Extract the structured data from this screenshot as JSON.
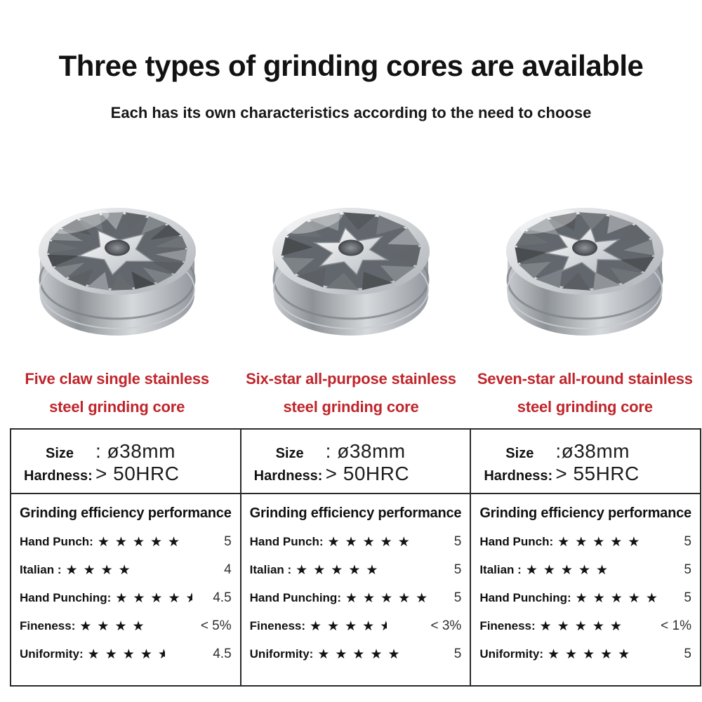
{
  "header": {
    "title": "Three types of grinding cores are available",
    "subtitle": "Each has its own characteristics according to the need to choose"
  },
  "colors": {
    "accent_red": "#bf252b",
    "text": "#161616",
    "table_border": "#2a2a2a",
    "star": "#141414",
    "metal_light": "#f4f5f6",
    "metal_dark": "#62676d"
  },
  "products": [
    {
      "image_icon": "five-claw-burr-photo",
      "star_points": 5,
      "name_line1": "Five claw single stainless",
      "name_line2": "steel grinding core",
      "specs": {
        "size_label": "Size",
        "size_value": ": ø38mm",
        "hardness_label": "Hardness:",
        "hardness_value": "> 50HRC"
      },
      "ratings_title": "Grinding efficiency performance",
      "ratings": [
        {
          "label": "Hand Punch:",
          "stars": 5,
          "value": "5"
        },
        {
          "label": "Italian :",
          "stars": 4,
          "value": "4"
        },
        {
          "label": "Hand Punching:",
          "stars": 4.5,
          "value": "4.5"
        },
        {
          "label": "Fineness:",
          "stars": 4,
          "value": "< 5%"
        },
        {
          "label": "Uniformity:",
          "stars": 4.5,
          "value": "4.5"
        }
      ]
    },
    {
      "image_icon": "six-star-burr-photo",
      "star_points": 6,
      "name_line1": "Six-star all-purpose stainless",
      "name_line2": "steel grinding core",
      "specs": {
        "size_label": "Size",
        "size_value": ": ø38mm",
        "hardness_label": "Hardness:",
        "hardness_value": "> 50HRC"
      },
      "ratings_title": "Grinding efficiency performance",
      "ratings": [
        {
          "label": "Hand Punch:",
          "stars": 5,
          "value": "5"
        },
        {
          "label": "Italian :",
          "stars": 5,
          "value": "5"
        },
        {
          "label": "Hand Punching:",
          "stars": 5,
          "value": "5"
        },
        {
          "label": "Fineness:",
          "stars": 4.5,
          "value": "< 3%"
        },
        {
          "label": "Uniformity:",
          "stars": 5,
          "value": "5"
        }
      ]
    },
    {
      "image_icon": "seven-star-burr-photo",
      "star_points": 7,
      "name_line1": "Seven-star all-round stainless",
      "name_line2": "steel grinding core",
      "specs": {
        "size_label": "Size",
        "size_value": ":ø38mm",
        "hardness_label": "Hardness:",
        "hardness_value": "> 55HRC"
      },
      "ratings_title": "Grinding efficiency performance",
      "ratings": [
        {
          "label": "Hand Punch:",
          "stars": 5,
          "value": "5"
        },
        {
          "label": "Italian :",
          "stars": 5,
          "value": "5"
        },
        {
          "label": "Hand Punching:",
          "stars": 5,
          "value": "5"
        },
        {
          "label": "Fineness:",
          "stars": 5,
          "value": "< 1%"
        },
        {
          "label": "Uniformity:",
          "stars": 5,
          "value": "5"
        }
      ]
    }
  ]
}
